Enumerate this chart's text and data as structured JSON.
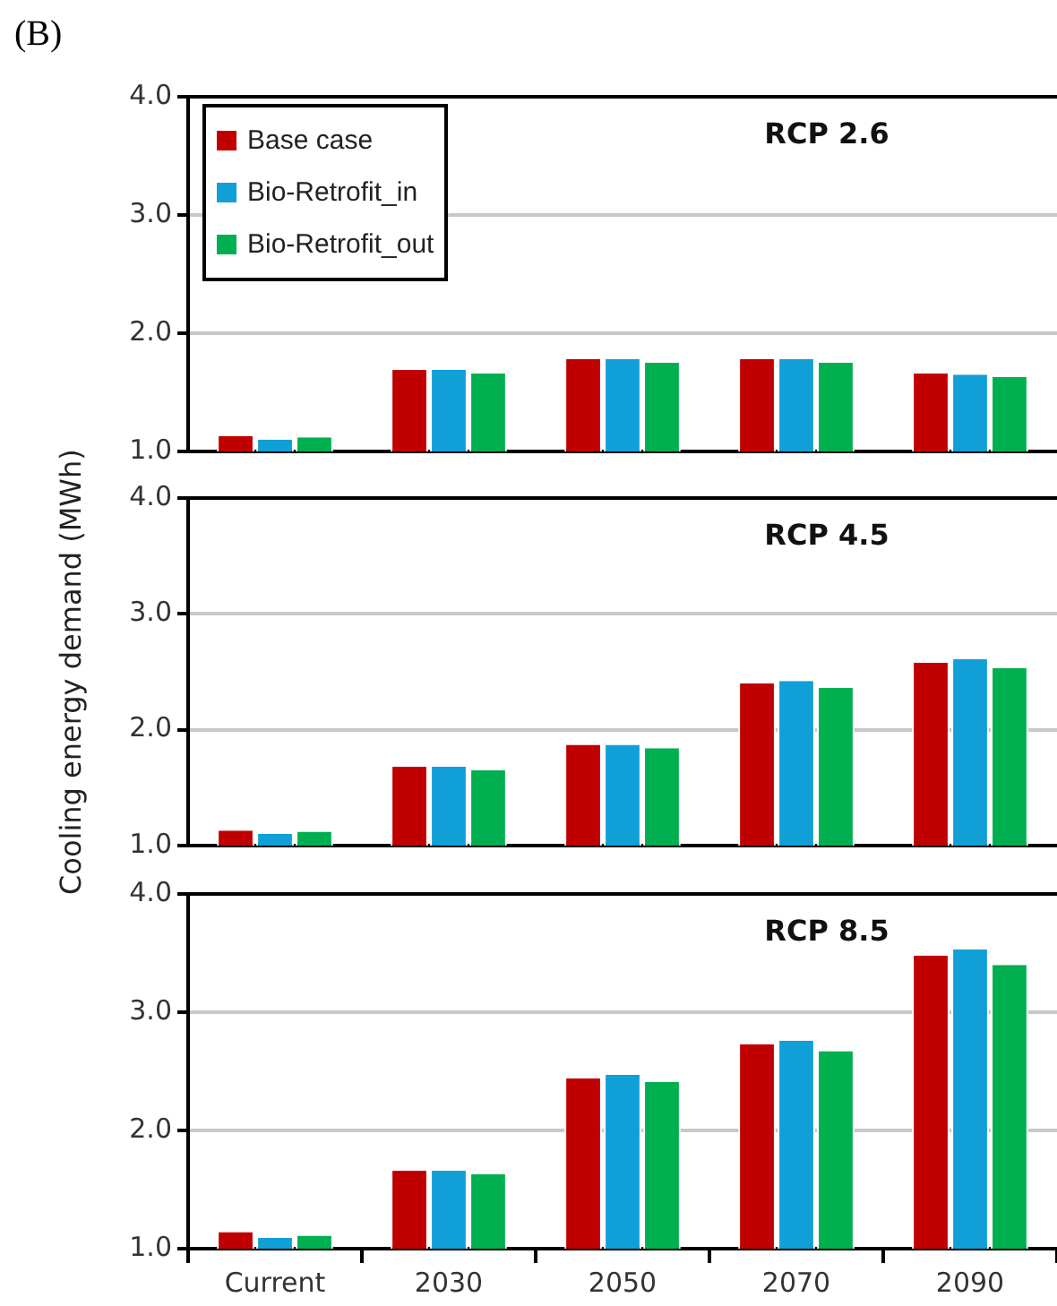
{
  "chart_data": [
    {
      "type": "bar",
      "title": "(B)",
      "annotations": [
        "RCP 2.6"
      ],
      "categories": [
        null,
        null,
        null,
        null,
        null
      ],
      "series": [
        {
          "name": "Base case",
          "color": "#c00000",
          "values": [
            1.13,
            1.69,
            1.78,
            1.78,
            1.66
          ]
        },
        {
          "name": "Bio-Retrofit_in",
          "color": "#119fd8",
          "values": [
            1.1,
            1.69,
            1.78,
            1.78,
            1.65
          ]
        },
        {
          "name": "Bio-Retrofit_out",
          "color": "#00b050",
          "values": [
            1.12,
            1.66,
            1.75,
            1.75,
            1.63
          ]
        }
      ],
      "ylim": [
        1,
        4
      ],
      "yticks": [
        {
          "value": 1,
          "label": "1.0"
        },
        {
          "value": 2,
          "label": "2.0"
        },
        {
          "value": 3,
          "label": "3.0"
        },
        {
          "value": 4,
          "label": "4.0"
        }
      ],
      "grid": "y",
      "legend": "top left",
      "tick_labels": "y"
    },
    {
      "type": "bar",
      "ylabel": "Cooling energy demand (MWh)",
      "annotations": [
        "RCP 4.5"
      ],
      "categories": [
        null,
        null,
        null,
        null,
        null
      ],
      "series": [
        {
          "color": "#c00000",
          "values": [
            1.13,
            1.68,
            1.87,
            2.4,
            2.58
          ]
        },
        {
          "color": "#119fd8",
          "values": [
            1.1,
            1.68,
            1.87,
            2.42,
            2.61
          ]
        },
        {
          "color": "#00b050",
          "values": [
            1.12,
            1.65,
            1.84,
            2.36,
            2.53
          ]
        }
      ],
      "ylim": [
        1,
        4
      ],
      "yticks": [
        {
          "value": 1,
          "label": "1.0"
        },
        {
          "value": 2,
          "label": "2.0"
        },
        {
          "value": 3,
          "label": "3.0"
        },
        {
          "value": 4,
          "label": "4.0"
        }
      ],
      "grid": "y",
      "legend": false,
      "tick_labels": "y"
    },
    {
      "type": "bar",
      "annotations": [
        "RCP 8.5"
      ],
      "categories": [
        "Current",
        "2030",
        "2050",
        "2070",
        "2090"
      ],
      "series": [
        {
          "color": "#c00000",
          "values": [
            1.14,
            1.66,
            2.44,
            2.73,
            3.48
          ]
        },
        {
          "color": "#119fd8",
          "values": [
            1.09,
            1.66,
            2.47,
            2.76,
            3.53
          ]
        },
        {
          "color": "#00b050",
          "values": [
            1.11,
            1.63,
            2.41,
            2.67,
            3.4
          ]
        }
      ],
      "ylim": [
        1,
        4
      ],
      "yticks": [
        {
          "value": 1,
          "label": "1.0"
        },
        {
          "value": 2,
          "label": "2.0"
        },
        {
          "value": 3,
          "label": "3.0"
        },
        {
          "value": 4,
          "label": "4.0"
        }
      ],
      "grid": "y",
      "legend": false
    }
  ]
}
